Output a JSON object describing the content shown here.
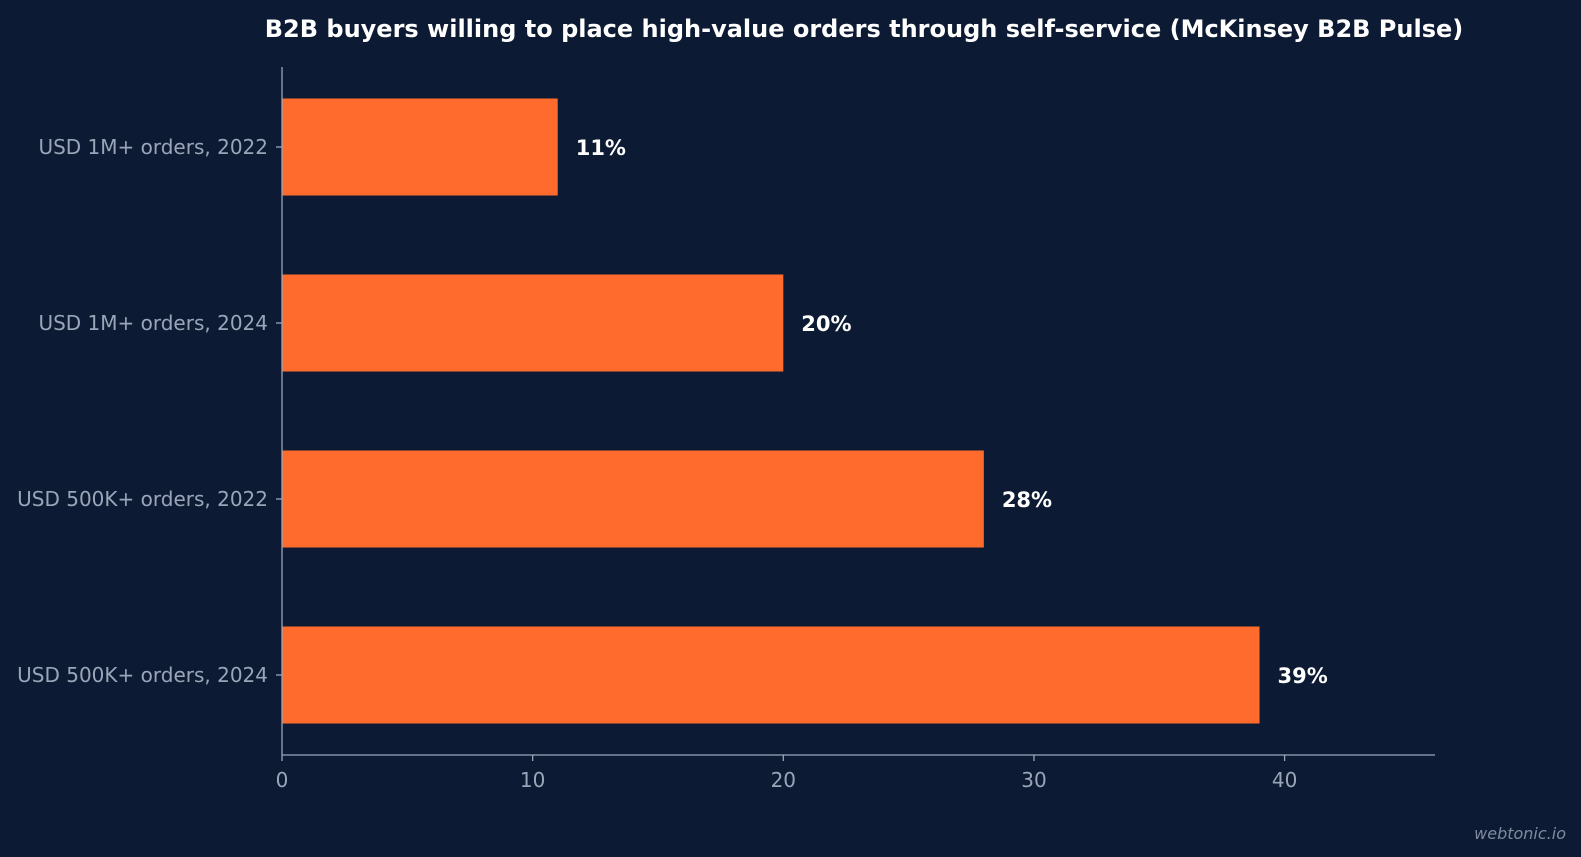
{
  "chart_data": {
    "type": "bar",
    "orientation": "horizontal",
    "title": "B2B buyers willing to place high-value orders through self-service (McKinsey B2B Pulse)",
    "categories": [
      "USD 1M+ orders, 2022",
      "USD 1M+ orders, 2024",
      "USD 500K+ orders, 2022",
      "USD 500K+ orders, 2024"
    ],
    "values": [
      11,
      20,
      28,
      39
    ],
    "value_labels": [
      "11%",
      "20%",
      "28%",
      "39%"
    ],
    "xticks": [
      0,
      10,
      20,
      30,
      40
    ],
    "xlim": [
      0,
      46
    ],
    "grid": false,
    "bar_color": "#ff6b2c",
    "background_color": "#0c1b33"
  },
  "watermark": "webtonic.io"
}
